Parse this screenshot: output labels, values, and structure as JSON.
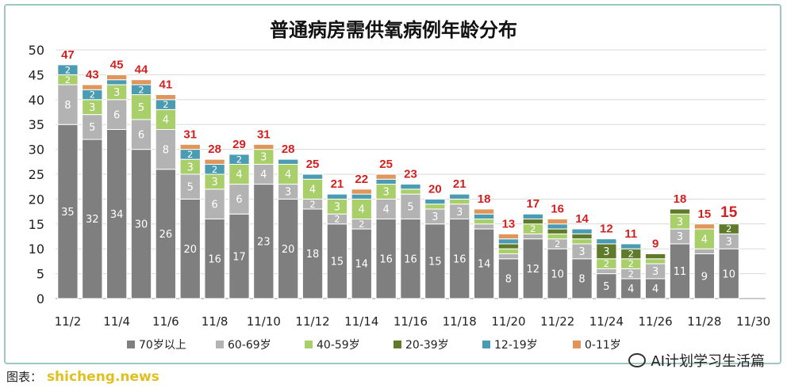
{
  "chart_data": {
    "type": "bar",
    "stacked": true,
    "title": "普通病房需供氧病例年龄分布",
    "ylim": [
      0,
      50
    ],
    "yticks": [
      0,
      5,
      10,
      15,
      20,
      25,
      30,
      35,
      40,
      45,
      50
    ],
    "grid": true,
    "legend_position": "bottom",
    "categories": [
      "11/2",
      "11/3",
      "11/4",
      "11/5",
      "11/6",
      "11/7",
      "11/8",
      "11/9",
      "11/10",
      "11/11",
      "11/12",
      "11/13",
      "11/14",
      "11/15",
      "11/16",
      "11/17",
      "11/18",
      "11/19",
      "11/20",
      "11/21",
      "11/22",
      "11/23",
      "11/24",
      "11/25",
      "11/26",
      "11/27",
      "11/28",
      "11/29",
      "11/30"
    ],
    "xtick_labels": [
      "11/2",
      "11/4",
      "11/6",
      "11/8",
      "11/10",
      "11/12",
      "11/14",
      "11/16",
      "11/18",
      "11/20",
      "11/22",
      "11/24",
      "11/26",
      "11/28",
      "11/30"
    ],
    "series": [
      {
        "name": "70岁以上",
        "color": "#7f7f7f",
        "values": [
          35,
          32,
          34,
          30,
          26,
          20,
          16,
          17,
          23,
          20,
          18,
          15,
          14,
          16,
          16,
          15,
          16,
          14,
          8,
          12,
          10,
          8,
          5,
          4,
          4,
          11,
          9,
          10,
          0
        ]
      },
      {
        "name": "60-69岁",
        "color": "#b3b3b3",
        "values": [
          8,
          5,
          6,
          6,
          8,
          5,
          6,
          6,
          4,
          3,
          2,
          2,
          2,
          4,
          5,
          3,
          3,
          1,
          1,
          1,
          2,
          3,
          1,
          2,
          3,
          3,
          1,
          3,
          0
        ]
      },
      {
        "name": "40-59岁",
        "color": "#a9cf6b",
        "values": [
          2,
          3,
          3,
          5,
          4,
          3,
          3,
          4,
          3,
          4,
          4,
          3,
          4,
          3,
          1,
          1,
          1,
          1,
          1,
          2,
          1,
          1,
          2,
          2,
          1,
          3,
          4,
          0,
          0
        ]
      },
      {
        "name": "20-39岁",
        "color": "#5f7a2a",
        "values": [
          0,
          0,
          0,
          0,
          0,
          0,
          0,
          0,
          0,
          0,
          0,
          0,
          0,
          0,
          0,
          0,
          0,
          0,
          1,
          1,
          1,
          1,
          3,
          2,
          1,
          1,
          0,
          2,
          0
        ]
      },
      {
        "name": "12-19岁",
        "color": "#4b9bb2",
        "values": [
          2,
          2,
          1,
          2,
          2,
          2,
          2,
          2,
          0,
          1,
          1,
          1,
          1,
          1,
          1,
          1,
          1,
          1,
          1,
          1,
          1,
          1,
          1,
          1,
          0,
          0,
          0,
          0,
          0
        ]
      },
      {
        "name": "0-11岁",
        "color": "#e0955a",
        "values": [
          0,
          1,
          1,
          1,
          1,
          1,
          1,
          0,
          1,
          0,
          0,
          0,
          1,
          1,
          0,
          0,
          0,
          1,
          1,
          0,
          1,
          0,
          0,
          0,
          0,
          0,
          1,
          0,
          0
        ]
      }
    ],
    "totals": [
      47,
      43,
      45,
      44,
      41,
      31,
      28,
      29,
      31,
      28,
      25,
      21,
      22,
      25,
      23,
      20,
      21,
      18,
      13,
      17,
      16,
      14,
      12,
      11,
      9,
      18,
      15,
      15,
      null
    ],
    "total_label_color": "#d42020"
  },
  "footer": {
    "left_text": "shicheng.news",
    "source_text": "图表：",
    "right_text": "AI计划学习生活篇"
  }
}
